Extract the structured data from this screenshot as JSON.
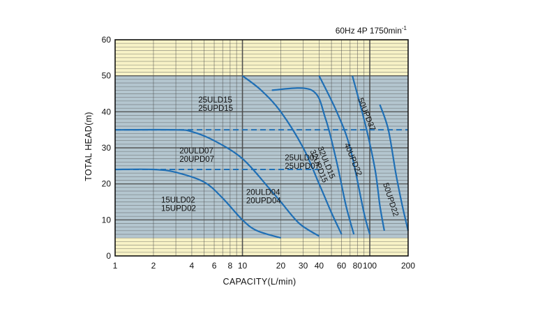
{
  "chart_data": {
    "type": "line",
    "title": "",
    "annotation": "60Hz 4P 1750min",
    "annotation_sup": "-1",
    "xlabel": "CAPACITY(L/min)",
    "ylabel": "TOTAL HEAD(m)",
    "x_scale": "log",
    "xlim": [
      1,
      200
    ],
    "ylim": [
      0,
      60
    ],
    "x_ticks": [
      1,
      2,
      4,
      6,
      8,
      10,
      20,
      30,
      40,
      60,
      80,
      100,
      200
    ],
    "x_tick_labels": [
      "1",
      "2",
      "4",
      "6",
      "8",
      "10",
      "20",
      "30",
      "40",
      "60",
      "80",
      "100",
      "200"
    ],
    "y_ticks": [
      0,
      10,
      20,
      30,
      40,
      50,
      60
    ],
    "y_tick_labels": [
      "0",
      "10",
      "20",
      "30",
      "40",
      "50",
      "60"
    ],
    "grid": true,
    "colors": {
      "background": "#f7f2c6",
      "region": "#b4c6cf",
      "curve": "#1f6fb5",
      "grid": "#4a4a4a",
      "axis": "#111111"
    },
    "shaded_region": {
      "x_range": [
        1,
        200
      ],
      "y_range": [
        5,
        50
      ]
    },
    "series": [
      {
        "points": [
          [
            1,
            24
          ],
          [
            2,
            24
          ],
          [
            3,
            23.2
          ],
          [
            5,
            20.5
          ],
          [
            7,
            16
          ],
          [
            10,
            10
          ],
          [
            13,
            7
          ],
          [
            20,
            5
          ]
        ]
      },
      {
        "points": [
          [
            1,
            35
          ],
          [
            3,
            35
          ],
          [
            4,
            34.5
          ],
          [
            6,
            32
          ],
          [
            10,
            27
          ],
          [
            16,
            19
          ],
          [
            20,
            15
          ],
          [
            28,
            9
          ],
          [
            40,
            5.5
          ]
        ]
      },
      {
        "points": [
          [
            10,
            50
          ],
          [
            14,
            46
          ],
          [
            20,
            40
          ],
          [
            30,
            30
          ],
          [
            40,
            20
          ],
          [
            50,
            12
          ],
          [
            60,
            6
          ]
        ]
      },
      {
        "points": [
          [
            17,
            46
          ],
          [
            35,
            46
          ],
          [
            45,
            38
          ],
          [
            55,
            26
          ],
          [
            65,
            14
          ],
          [
            75,
            6
          ]
        ]
      },
      {
        "points": [
          [
            40,
            50
          ],
          [
            55,
            40
          ],
          [
            70,
            30
          ],
          [
            90,
            12
          ],
          [
            100,
            6
          ]
        ]
      },
      {
        "points": [
          [
            73,
            50
          ],
          [
            93,
            36
          ],
          [
            110,
            24
          ],
          [
            120,
            14
          ],
          [
            130,
            7
          ]
        ]
      },
      {
        "points": [
          [
            120,
            42
          ],
          [
            140,
            35
          ],
          [
            160,
            23
          ],
          [
            180,
            14
          ],
          [
            200,
            7
          ]
        ]
      }
    ],
    "dashed_lines": [
      {
        "x": [
          1,
          200
        ],
        "y": [
          35,
          35
        ]
      },
      {
        "x": [
          1,
          40
        ],
        "y": [
          24,
          24
        ]
      }
    ],
    "labels": [
      {
        "lines": [
          "15ULD02",
          "15UPD02"
        ],
        "x": 2.3,
        "y": 14.8,
        "rotation": 0
      },
      {
        "lines": [
          "20ULD04",
          "20UPD04"
        ],
        "x": 10.7,
        "y": 16.9,
        "rotation": 0
      },
      {
        "lines": [
          "20ULD07",
          "20UPD07"
        ],
        "x": 3.2,
        "y": 28.5,
        "rotation": 0
      },
      {
        "lines": [
          "25ULD07",
          "25UPD07"
        ],
        "x": 21.5,
        "y": 26.5,
        "rotation": 0
      },
      {
        "lines": [
          "25ULD15",
          "25UPD15"
        ],
        "x": 4.5,
        "y": 42.6,
        "rotation": 0
      },
      {
        "lines": [
          "32ULD15",
          "32UPD15"
        ],
        "x": 39,
        "y": 30,
        "rotation": 68
      },
      {
        "lines": [
          "40UPD22"
        ],
        "x": 63,
        "y": 31,
        "rotation": 68
      },
      {
        "lines": [
          "50UPD37"
        ],
        "x": 80.5,
        "y": 43.5,
        "rotation": 68
      },
      {
        "lines": [
          "50UPD22"
        ],
        "x": 127,
        "y": 20,
        "rotation": 72
      }
    ]
  }
}
